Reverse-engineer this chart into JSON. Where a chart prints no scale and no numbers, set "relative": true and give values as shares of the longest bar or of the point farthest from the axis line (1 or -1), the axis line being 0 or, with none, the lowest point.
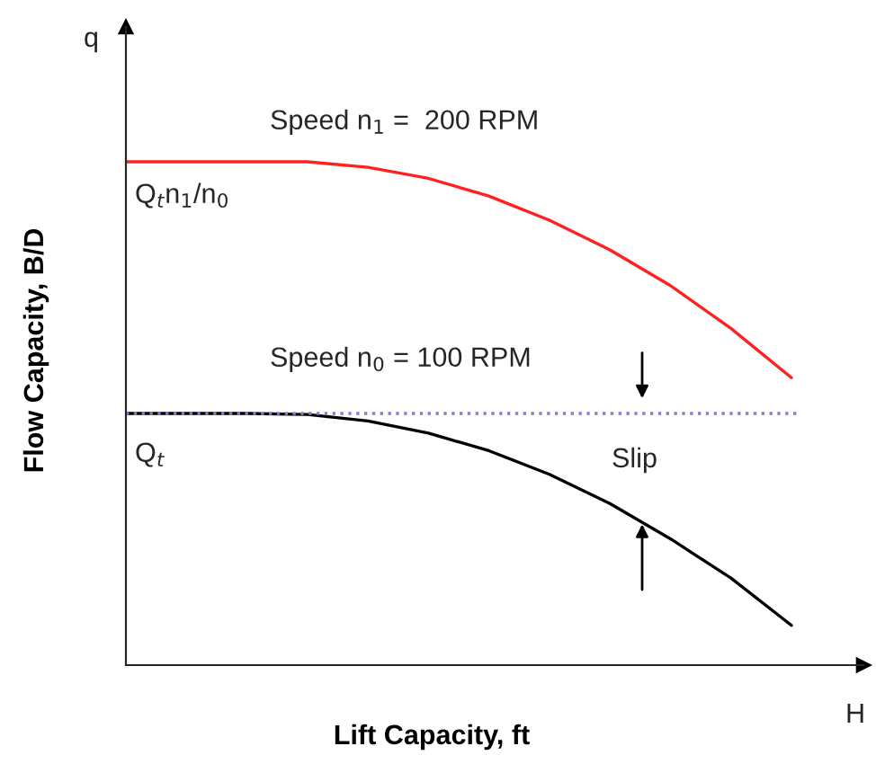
{
  "chart_data": {
    "type": "line",
    "relative": true,
    "xlabel": "Lift Capacity, ft",
    "ylabel": "Flow Capacity, B/D",
    "categories": [
      null,
      null,
      null,
      null,
      null,
      null,
      null,
      null,
      null,
      null,
      null,
      null
    ],
    "series": [
      {
        "color": "#ff2020",
        "values": [
          1.0,
          1.0,
          1.0,
          1.0,
          0.989,
          0.967,
          0.932,
          0.884,
          0.825,
          0.754,
          0.669,
          0.571
        ]
      },
      {
        "color": "#000000",
        "values": [
          0.5,
          0.5,
          0.5,
          0.498,
          0.485,
          0.461,
          0.426,
          0.379,
          0.321,
          0.251,
          0.173,
          0.079
        ]
      }
    ],
    "ref_lines": [
      {
        "axis": "y",
        "value": 0.5,
        "color": "#8080d0",
        "line_style": "dotted"
      }
    ],
    "annotations": [
      "q",
      "H",
      "Speed n$_{1}$ =  200 RPM",
      "Q$_{t}$n$_{1}$/n$_{0}$",
      "Speed n$_{0}$ = 100 RPM",
      "Q$_{t}$",
      "Slip"
    ],
    "grid": false,
    "legend": false
  }
}
